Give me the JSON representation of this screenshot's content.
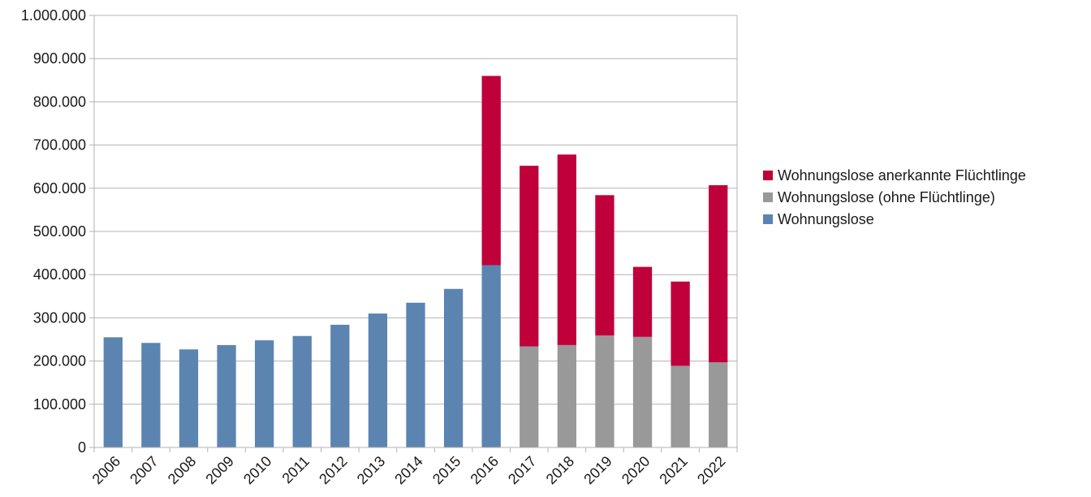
{
  "chart_data": {
    "type": "bar",
    "stacked": true,
    "title": "",
    "xlabel": "",
    "ylabel": "",
    "ylim": [
      0,
      1000000
    ],
    "yticks": [
      "0",
      "100.000",
      "200.000",
      "300.000",
      "400.000",
      "500.000",
      "600.000",
      "700.000",
      "800.000",
      "900.000",
      "1.000.000"
    ],
    "grid": true,
    "legend_position": "right",
    "categories": [
      "2006",
      "2007",
      "2008",
      "2009",
      "2010",
      "2011",
      "2012",
      "2013",
      "2014",
      "2015",
      "2016",
      "2017",
      "2018",
      "2019",
      "2020",
      "2021",
      "2022"
    ],
    "series": [
      {
        "name": "Wohnungslose",
        "color": "#5b84b1",
        "values": [
          255000,
          242000,
          227000,
          237000,
          248000,
          258000,
          284000,
          310000,
          335000,
          367000,
          422000,
          0,
          0,
          0,
          0,
          0,
          0
        ]
      },
      {
        "name": "Wohnungslose (ohne Flüchtlinge)",
        "color": "#999999",
        "values": [
          0,
          0,
          0,
          0,
          0,
          0,
          0,
          0,
          0,
          0,
          0,
          234000,
          237000,
          259000,
          256000,
          189000,
          197000
        ]
      },
      {
        "name": "Wohnungslose anerkannte Flüchtlinge",
        "color": "#c0003b",
        "values": [
          0,
          0,
          0,
          0,
          0,
          0,
          0,
          0,
          0,
          0,
          438000,
          418000,
          441000,
          325000,
          162000,
          195000,
          410000
        ]
      }
    ],
    "legend_order": [
      2,
      1,
      0
    ]
  }
}
